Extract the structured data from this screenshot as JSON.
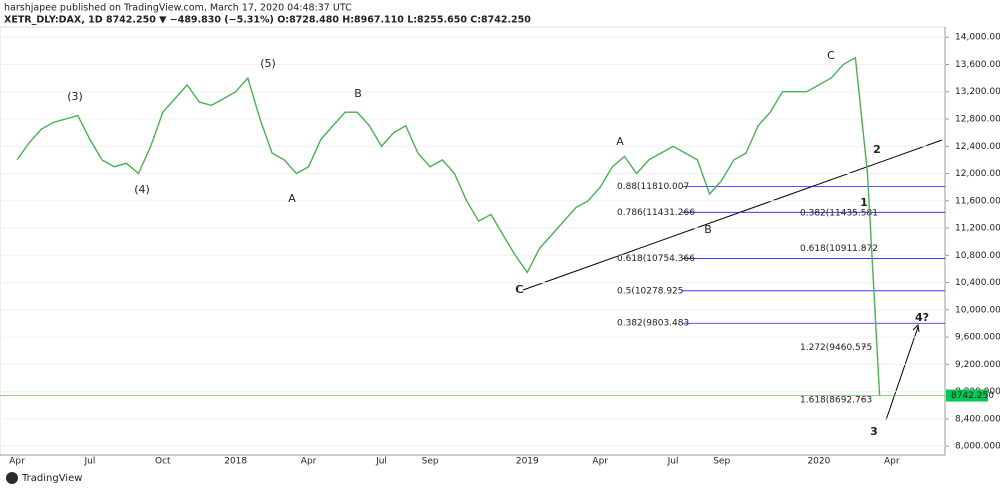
{
  "header": {
    "author_line": "harshjapee published on TradingView.com, March 17, 2020 04:48:37 UTC",
    "symbol_line": "XETR_DLY:DAX, 1D 8742.250 ▼ −489.830 (−5.31%) O:8728.480 H:8967.110 L:8255.650 C:8742.250"
  },
  "footer": {
    "brand": "TradingView"
  },
  "chart_data": {
    "type": "line",
    "color": "#4caf50",
    "categories": [
      "Apr",
      null,
      null,
      null,
      null,
      null,
      "Jul",
      null,
      null,
      null,
      null,
      null,
      "Oct",
      null,
      null,
      null,
      null,
      null,
      "2018",
      null,
      null,
      null,
      null,
      null,
      "Apr",
      null,
      null,
      null,
      null,
      null,
      "Jul",
      null,
      null,
      null,
      "Sep",
      null,
      null,
      null,
      null,
      null,
      null,
      null,
      "2019",
      null,
      null,
      null,
      null,
      null,
      "Apr",
      null,
      null,
      null,
      null,
      null,
      "Jul",
      null,
      null,
      null,
      "Sep",
      null,
      null,
      null,
      null,
      null,
      null,
      null,
      "2020",
      null,
      null,
      null,
      null,
      null,
      "Apr"
    ],
    "values": [
      12200,
      12450,
      12650,
      12750,
      12800,
      12850,
      12500,
      12200,
      12100,
      12150,
      12000,
      12400,
      12900,
      13100,
      13300,
      13050,
      13000,
      13100,
      13200,
      13400,
      12800,
      12300,
      12200,
      12000,
      12100,
      12500,
      12700,
      12900,
      12900,
      12700,
      12400,
      12600,
      12700,
      12300,
      12100,
      12200,
      12000,
      11600,
      11300,
      11400,
      11100,
      10800,
      10550,
      10900,
      11100,
      11300,
      11500,
      11600,
      11800,
      12100,
      12250,
      12000,
      12200,
      12300,
      12400,
      12300,
      12200,
      11700,
      11900,
      12200,
      12300,
      12700,
      12900,
      13200,
      13200,
      13200,
      13300,
      13400,
      13600,
      13700,
      12000,
      8742.25,
      null
    ],
    "last_label": "8742.250",
    "ylim": [
      7870,
      14150
    ],
    "yticks": [
      {
        "value": 8000,
        "label": "8,000.000"
      },
      {
        "value": 8400,
        "label": "8,400.000"
      },
      {
        "value": 8800,
        "label": "8,800.000"
      },
      {
        "value": 9200,
        "label": "9,200.000"
      },
      {
        "value": 9600,
        "label": "9,600.000"
      },
      {
        "value": 10000,
        "label": "10,000.000"
      },
      {
        "value": 10400,
        "label": "10,400.000"
      },
      {
        "value": 10800,
        "label": "10,800.000"
      },
      {
        "value": 11200,
        "label": "11,200.000"
      },
      {
        "value": 11600,
        "label": "11,600.000"
      },
      {
        "value": 12000,
        "label": "12,000.000"
      },
      {
        "value": 12400,
        "label": "12,400.000"
      },
      {
        "value": 12800,
        "label": "12,800.000"
      },
      {
        "value": 13200,
        "label": "13,200.000"
      },
      {
        "value": 13600,
        "label": "13,600.000"
      },
      {
        "value": 14000,
        "label": "14,000.000"
      }
    ],
    "fib_levels": [
      {
        "label": "0.88(11810.007",
        "value": 11810.007,
        "color": "#1a1aff"
      },
      {
        "label": "0.786(11431.266",
        "value": 11431.266,
        "color": "#1a1aff"
      },
      {
        "label": "0.618(10754.366",
        "value": 10754.366,
        "color": "#1a1aff"
      },
      {
        "label": "0.5(10278.925",
        "value": 10278.925,
        "color": "#1a1aff"
      },
      {
        "label": "0.382(9803.483",
        "value": 9803.483,
        "color": "#1a1aff"
      },
      {
        "label": "0.382(11435.581",
        "value": 11435.581,
        "color": "#ff1a1a"
      },
      {
        "label": "0.618(10911.872",
        "value": 10911.872,
        "color": "#ff1a1a"
      },
      {
        "label": "1.272(9460.575",
        "value": 9460.575,
        "color": "#ff1a1a"
      },
      {
        "label": "1.618(8692.763",
        "value": 8692.763,
        "color": "#ff1a1a"
      }
    ],
    "annotations": [
      "(3)",
      "(4)",
      "(5)",
      "A",
      "B",
      "C",
      "A",
      "B",
      "C",
      "C",
      "2",
      "1",
      "3",
      "4?"
    ]
  }
}
